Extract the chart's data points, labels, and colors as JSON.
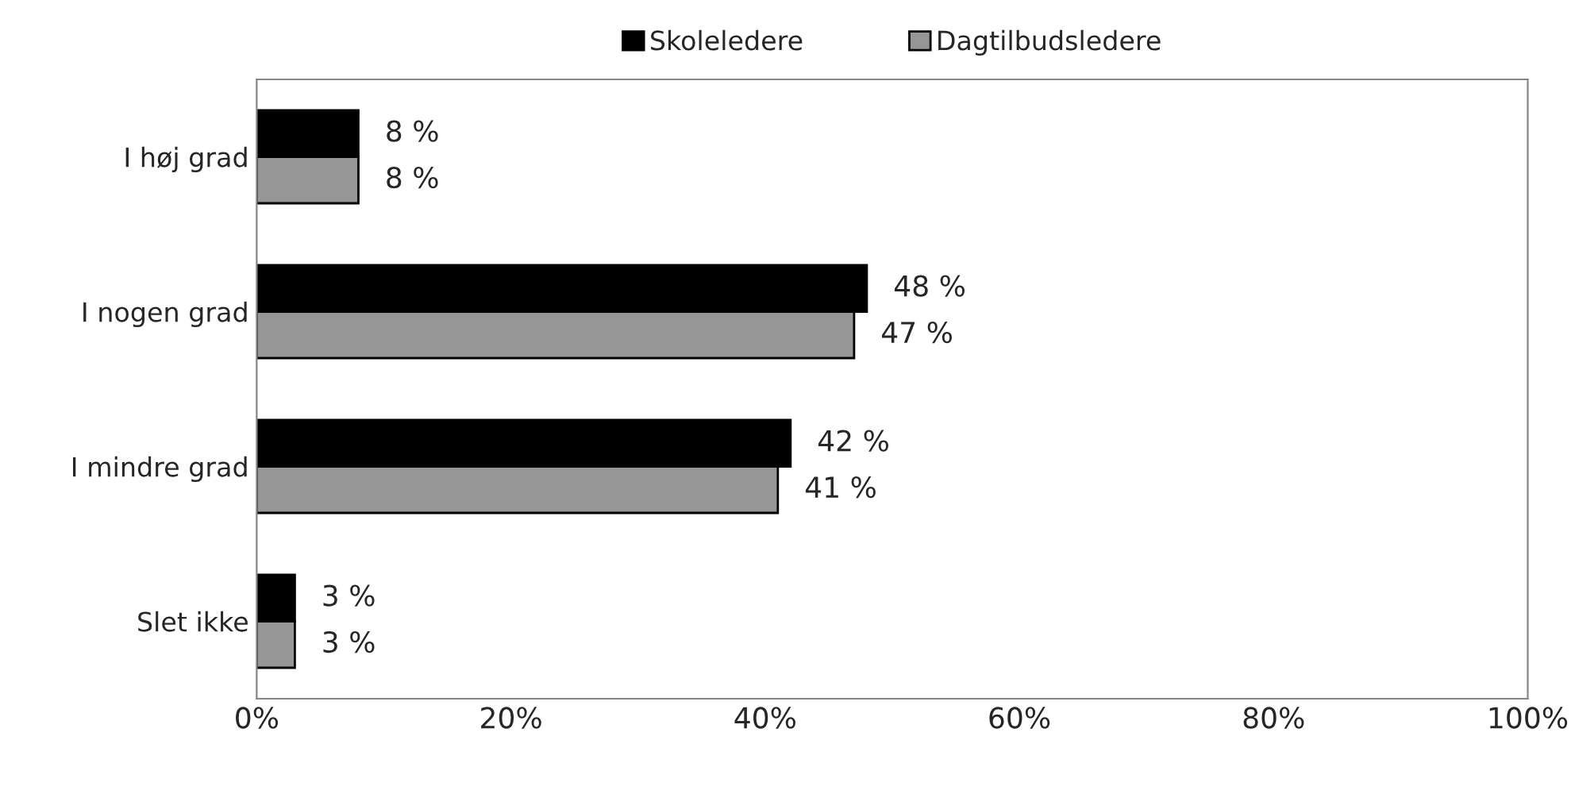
{
  "chart_data": {
    "type": "bar",
    "orientation": "horizontal",
    "categories": [
      "I høj grad",
      "I nogen grad",
      "I mindre grad",
      "Slet ikke"
    ],
    "series": [
      {
        "name": "Skoleledere",
        "color": "#000000",
        "values": [
          8,
          48,
          42,
          3
        ],
        "value_labels": [
          "8 %",
          "48 %",
          "42 %",
          "3 %"
        ]
      },
      {
        "name": "Dagtilbudsledere",
        "color": "#969696",
        "values": [
          8,
          47,
          41,
          3
        ],
        "value_labels": [
          "8 %",
          "47 %",
          "41 %",
          "3 %"
        ]
      }
    ],
    "xlim": [
      0,
      100
    ],
    "xticks": [
      {
        "value": 0,
        "label": "0%"
      },
      {
        "value": 20,
        "label": "20%"
      },
      {
        "value": 40,
        "label": "40%"
      },
      {
        "value": 60,
        "label": "60%"
      },
      {
        "value": 80,
        "label": "80%"
      },
      {
        "value": 100,
        "label": "100%"
      }
    ],
    "legend": "top",
    "grid": false
  }
}
